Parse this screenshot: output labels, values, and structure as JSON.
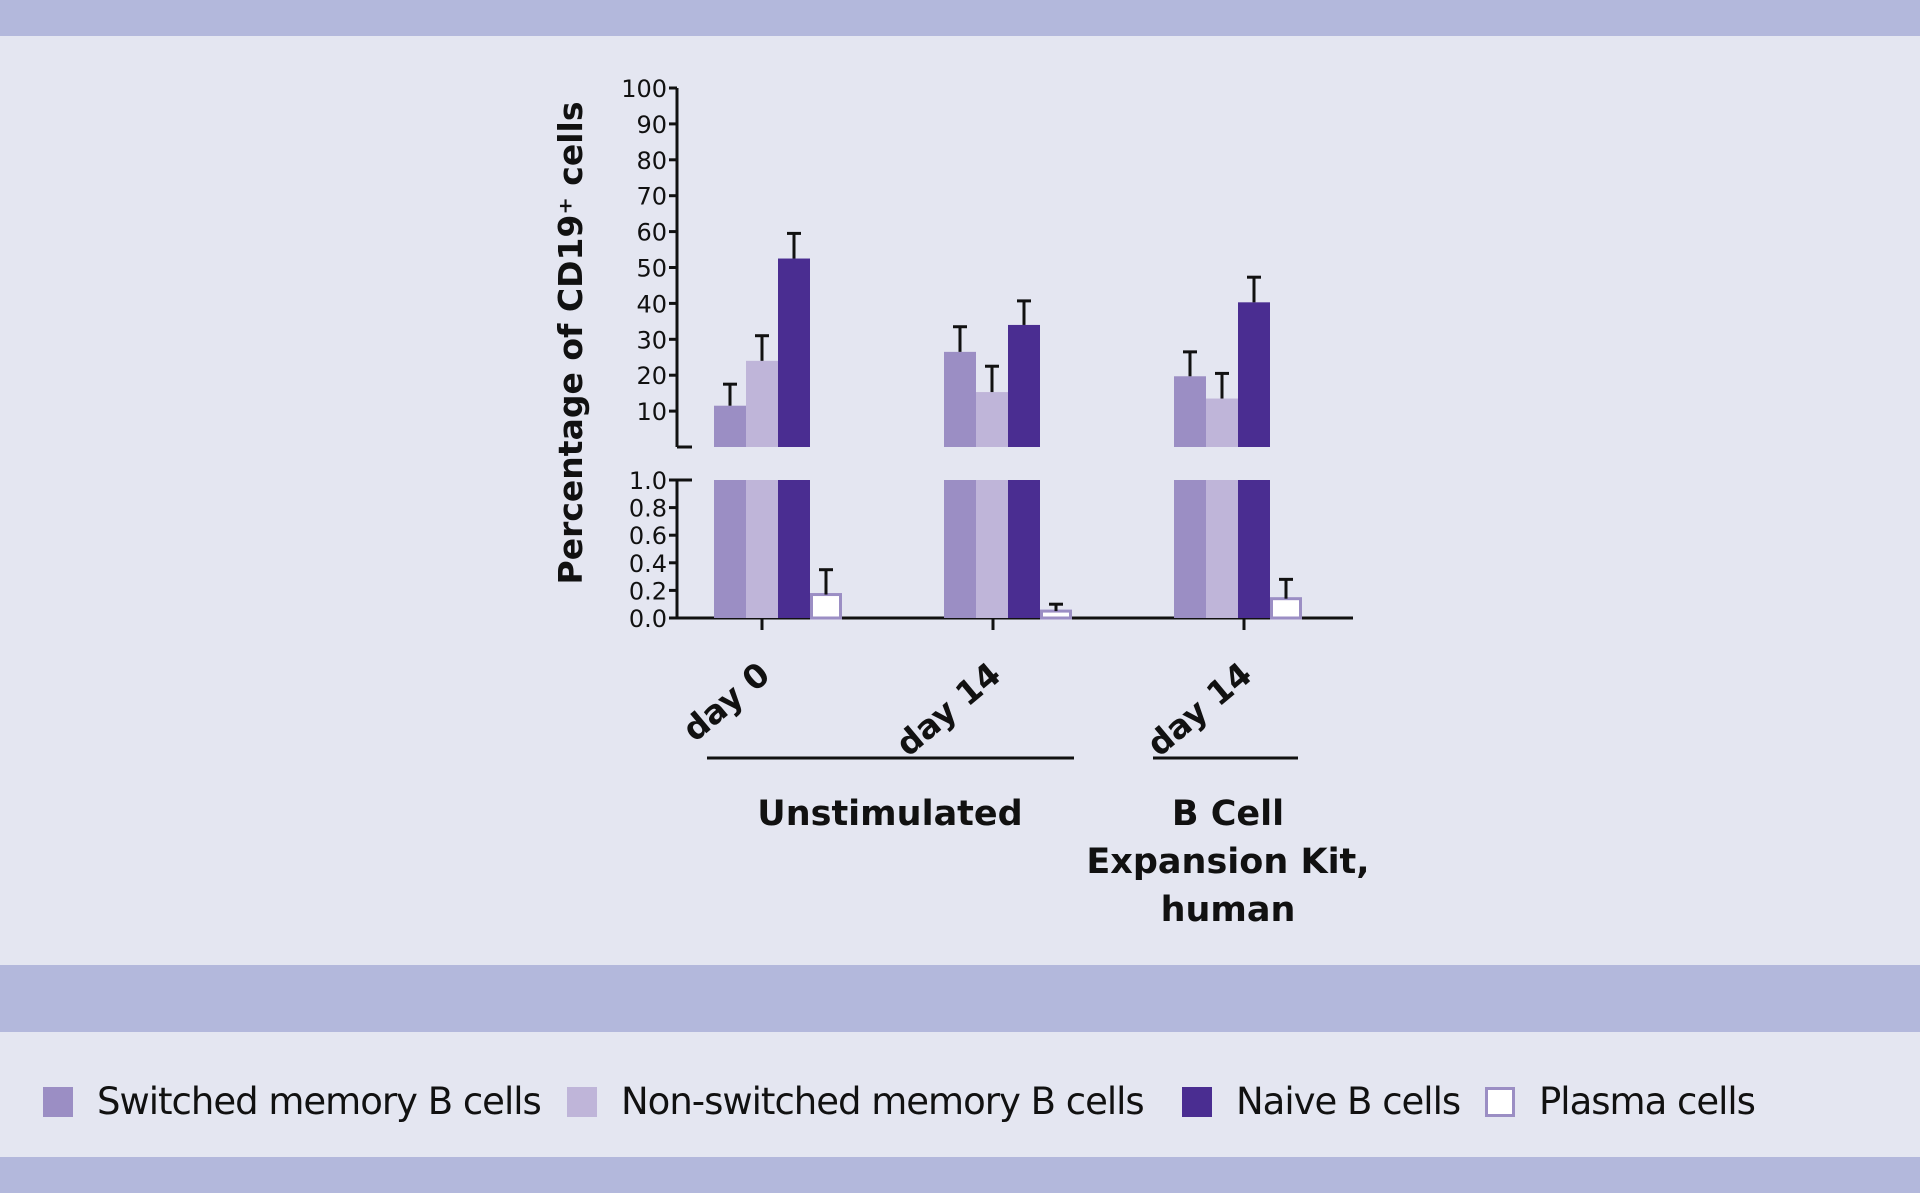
{
  "chart_data": {
    "type": "bar",
    "ylabel": "Percentage  of CD19⁺ cells",
    "axis_break": true,
    "upper_axis": {
      "ylim": [
        0,
        100
      ],
      "ticks": [
        "10",
        "20",
        "30",
        "40",
        "50",
        "60",
        "70",
        "80",
        "90",
        "100"
      ]
    },
    "lower_axis": {
      "ylim": [
        0,
        1.0
      ],
      "ticks": [
        "0.0",
        "0.2",
        "0.4",
        "0.6",
        "0.8",
        "1.0"
      ]
    },
    "categories": [
      "day 0",
      "day 14",
      "day 14"
    ],
    "category_groups": [
      {
        "label": "Unstimulated",
        "categories": [
          0,
          1
        ]
      },
      {
        "label_lines": [
          "B Cell",
          "Expansion Kit,",
          "human"
        ],
        "categories": [
          2
        ]
      }
    ],
    "series": [
      {
        "name": "Switched memory B cells",
        "color": "#9b8ec4",
        "values": [
          11.5,
          26.5,
          19.7
        ],
        "error_upper": [
          17.5,
          33.5,
          26.5
        ]
      },
      {
        "name": "Non-switched memory B cells",
        "color": "#bfb5d9",
        "values": [
          24,
          15.3,
          13.5
        ],
        "error_upper": [
          31,
          22.5,
          20.5
        ]
      },
      {
        "name": "Naive B cells",
        "color": "#4a2d91",
        "values": [
          52.5,
          34,
          40.3
        ],
        "error_upper": [
          59.5,
          40.7,
          47.3
        ]
      },
      {
        "name": "Plasma cells",
        "color": "#9b8ec4",
        "fill": "#ffffff",
        "values": [
          0.17,
          0.05,
          0.14
        ],
        "error_upper": [
          0.35,
          0.1,
          0.28
        ]
      }
    ],
    "legend_position": "bottom",
    "grid": false
  },
  "colors": {
    "background": "#e4e6f1",
    "band": "#b3b8dc"
  }
}
